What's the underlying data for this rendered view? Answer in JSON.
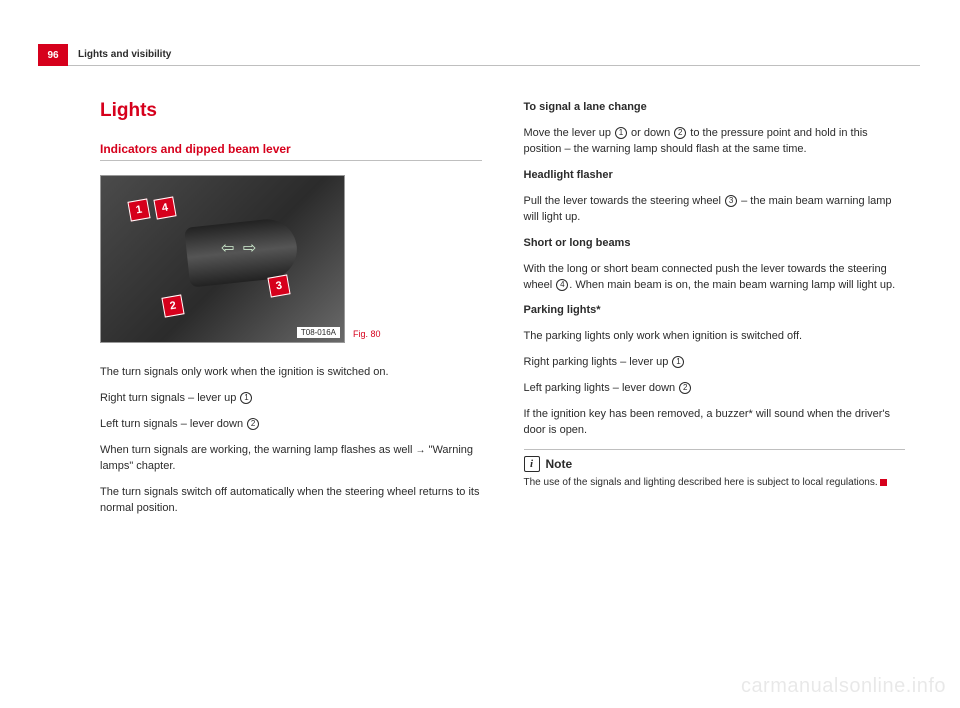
{
  "page": {
    "number": "96",
    "section": "Lights and visibility"
  },
  "h1": "Lights",
  "h2": "Indicators and dipped beam lever",
  "figure": {
    "tag": "T08-016A",
    "caption": "Fig. 80"
  },
  "left": {
    "p1": "The turn signals only work when the ignition is switched on.",
    "p2a": "Right turn signals – lever up ",
    "p3a": "Left turn signals – lever down ",
    "p4": "When turn signals are working, the warning lamp flashes as well ",
    "p4b": "\"Warning lamps\" chapter.",
    "p5": "The turn signals switch off automatically when the steering wheel returns to its normal position."
  },
  "right": {
    "t1": "To signal a lane change",
    "p1a": "Move the lever up ",
    "p1b": " or down ",
    "p1c": " to the pressure point and hold in this position – the warning lamp should flash at the same time.",
    "t2": "Headlight flasher",
    "p2a": "Pull the lever towards the steering wheel ",
    "p2b": " – the main beam warning lamp will light up.",
    "t3": "Short or long beams",
    "p3a": "With the long or short beam connected push the lever towards the steering wheel ",
    "p3b": ". When main beam is on, the main beam warning lamp will light up.",
    "t4": "Parking lights*",
    "p4": "The parking lights only work when ignition is switched off.",
    "p5a": "Right parking lights – lever up ",
    "p6a": "Left parking lights – lever down ",
    "p7": "If the ignition key has been removed, a buzzer* will sound when the driver's door is open.",
    "note_title": "Note",
    "note_text": "The use of the signals and lighting described here is subject to local regulations."
  },
  "refs": {
    "n1": "1",
    "n2": "2",
    "n3": "3",
    "n4": "4"
  },
  "watermark": "carmanualsonline.info"
}
